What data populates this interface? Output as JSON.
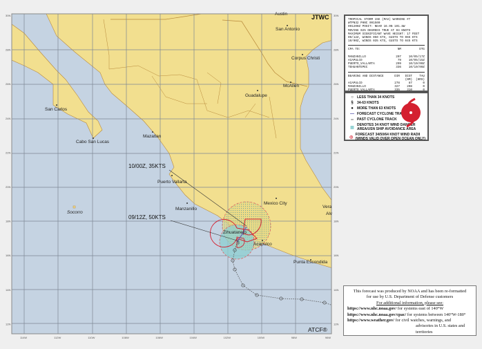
{
  "map": {
    "agency_label": "JTWC",
    "footer_logo": "ATCF®",
    "lat_labels": [
      "30N",
      "28N",
      "26N",
      "24N",
      "22N",
      "20N",
      "18N",
      "16N",
      "14N",
      "12N"
    ],
    "lon_labels": [
      "114W",
      "112W",
      "110W",
      "108W",
      "106W",
      "104W",
      "102W",
      "100W",
      "98W",
      "96W"
    ],
    "cities": [
      {
        "name": "Austin"
      },
      {
        "name": "San Antonio"
      },
      {
        "name": "Corpus Christi"
      },
      {
        "name": "McAllen"
      },
      {
        "name": "Guadalupe"
      },
      {
        "name": "San Carlos"
      },
      {
        "name": "Cabo San Lucas"
      },
      {
        "name": "Mazatlan"
      },
      {
        "name": "Puerto Vallarta"
      },
      {
        "name": "Manzanillo"
      },
      {
        "name": "Socorro"
      },
      {
        "name": "Mexico City"
      },
      {
        "name": "Vera"
      },
      {
        "name": "Alv"
      },
      {
        "name": "Zihuatanejo"
      },
      {
        "name": "Acapulco"
      },
      {
        "name": "Punta Escondida"
      }
    ],
    "forecast_points": [
      {
        "label": "09/12Z, 50KTS"
      },
      {
        "label": "10/00Z, 35KTS"
      }
    ],
    "colors": {
      "land": "#f2df8f",
      "water": "#c5d3e2",
      "track": "#6b5fb5",
      "radii": "#d42030",
      "danger": "#8ccfd0"
    }
  },
  "warning": {
    "lines": [
      "TROPICAL STORM 15E (MAX) WARNING #7",
      "WTPN32 PHNC 091500",
      "091200Z POSIT: NEAR 16.9N 101.8W",
      "MOVING 025 DEGREES TRUE AT 04 KNOTS",
      "MAXIMUM SIGNIFICANT WAVE HEIGHT: 17 FEET",
      "09/12Z, WINDS 050 KTS, GUSTS TO 065 KTS",
      "10/00Z, WINDS 035 KTS, GUSTS TO 045 KTS"
    ],
    "cpa": {
      "header": [
        "CPA TO:",
        "NM",
        "DTG"
      ],
      "rows": [
        [
          "MANZANILLO",
          "207",
          "10/05/17Z"
        ],
        [
          "ACAPULCO",
          "79",
          "10/05/15Z"
        ],
        [
          "PUERTO_VALLARTA",
          "299",
          "10/10/00Z"
        ],
        [
          "TEHUANTEPEC",
          "336",
          "10/10/00Z"
        ]
      ]
    },
    "bearing": {
      "header": [
        "BEARING AND DISTANCE",
        "DIR",
        "DIST",
        "TAU"
      ],
      "units": [
        "",
        "",
        "(NM)",
        "(HRS)"
      ],
      "rows": [
        [
          "ACAPULCO",
          "278",
          "87",
          "0"
        ],
        [
          "MANZANILLO",
          "327",
          "208",
          "0"
        ],
        [
          "PUERTO_VALLARTA",
          "335",
          "310",
          "0"
        ],
        [
          "TEHUANTEPEC",
          "276",
          "358",
          "0"
        ]
      ]
    }
  },
  "legend": {
    "items": [
      {
        "icon": "open-circle-icon",
        "label": "LESS THAN 34 KNOTS"
      },
      {
        "icon": "storm-symbol-open-icon",
        "label": "34-63 KNOTS"
      },
      {
        "icon": "storm-symbol-filled-icon",
        "label": "MORE THAN 63 KNOTS"
      },
      {
        "icon": "solid-line-icon",
        "label": "FORECAST CYCLONE TRACK"
      },
      {
        "icon": "dotted-line-icon",
        "label": "PAST CYCLONE TRACK"
      },
      {
        "icon": "hatched-area-icon",
        "label": "DENOTES 34 KNOT WIND DANGER",
        "label2": "AREA/USN SHIP AVOIDANCE AREA"
      },
      {
        "icon": "wind-radii-icon",
        "label": "FORECAST 34/50/64 KNOT WIND RADII",
        "label2": "(WINDS VALID OVER OPEN OCEAN ONLY)"
      }
    ]
  },
  "notice": {
    "line1": "This forecast was produced by NOAA and has been re-formatted",
    "line2": "for use by U.S. Department of Defense customers",
    "line3": "For additional information, please see:",
    "links": [
      {
        "url": "https://www.nhc.noaa.gov/",
        "desc": "for systems east of 140°W"
      },
      {
        "url": "https://www.nhc.noaa.gov/cpac/",
        "desc": "for systems between 140°W-180°"
      },
      {
        "url": "https://www.weather.gov/",
        "desc": "for civil watches, warnings, and"
      }
    ],
    "line_last": "advisories in U.S. states and territories"
  }
}
